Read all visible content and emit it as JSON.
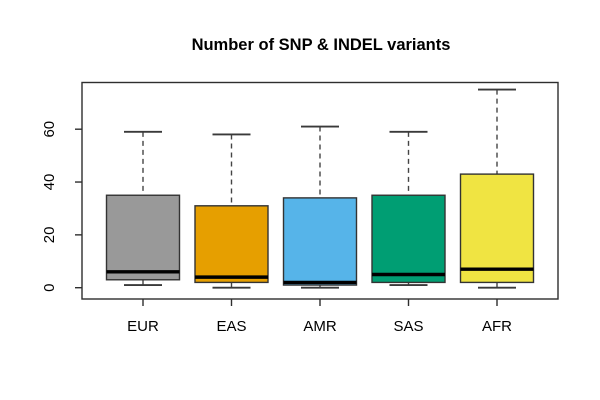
{
  "title": "Number of SNP & INDEL variants",
  "chart_data": {
    "type": "boxplot",
    "title": "Number of SNP & INDEL variants",
    "categories": [
      "EUR",
      "EAS",
      "AMR",
      "SAS",
      "AFR"
    ],
    "series": [
      {
        "name": "EUR",
        "color": "#999999",
        "whisker_low": 1,
        "q1": 3,
        "median": 6,
        "q3": 35,
        "whisker_high": 59
      },
      {
        "name": "EAS",
        "color": "#E69F00",
        "whisker_low": 0,
        "q1": 2,
        "median": 4,
        "q3": 31,
        "whisker_high": 58
      },
      {
        "name": "AMR",
        "color": "#56B4E9",
        "whisker_low": 0,
        "q1": 1,
        "median": 2,
        "q3": 34,
        "whisker_high": 61
      },
      {
        "name": "SAS",
        "color": "#009E73",
        "whisker_low": 1,
        "q1": 2,
        "median": 5,
        "q3": 35,
        "whisker_high": 59
      },
      {
        "name": "AFR",
        "color": "#F0E442",
        "whisker_low": 0,
        "q1": 2,
        "median": 7,
        "q3": 43,
        "whisker_high": 75
      }
    ],
    "xlabel": "",
    "ylabel": "",
    "yticks": [
      0,
      20,
      40,
      60
    ],
    "ylim": [
      -4,
      78
    ],
    "grid": false,
    "legend": "none",
    "whisker_line_style": "dashed",
    "box_border_color": "#333333",
    "median_color": "#000000",
    "axis_color": "#000000"
  }
}
